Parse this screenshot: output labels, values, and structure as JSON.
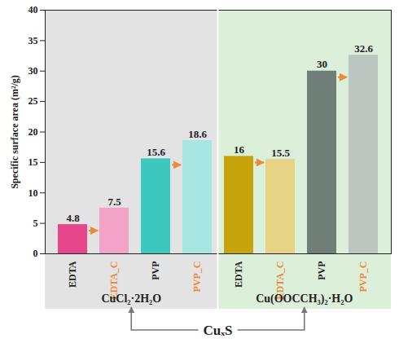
{
  "chart_data": {
    "type": "bar",
    "y_label": "Specific surface area (m²/g)",
    "categories": [
      "EDTA",
      "EDTA_C",
      "PVP",
      "PVP_C",
      "EDTA",
      "EDTA_C",
      "PVP",
      "PVP_C"
    ],
    "values": [
      4.8,
      7.5,
      15.6,
      18.6,
      16,
      15.5,
      30,
      32.6
    ],
    "colors": [
      "#e8468b",
      "#f3a3c6",
      "#3cc7bf",
      "#a6e5e1",
      "#c7a30c",
      "#e6d386",
      "#6f7f78",
      "#bcc6c1"
    ],
    "group_labels": [
      "CuCl₂·2H₂O",
      "Cu(OOCCH₃)₂·H₂O"
    ],
    "group_title": "CuₓS",
    "ylim": [
      0,
      40
    ],
    "yticks": [
      0,
      5,
      10,
      15,
      20,
      25,
      30,
      35,
      40
    ],
    "grid": false,
    "data_labels": true
  }
}
